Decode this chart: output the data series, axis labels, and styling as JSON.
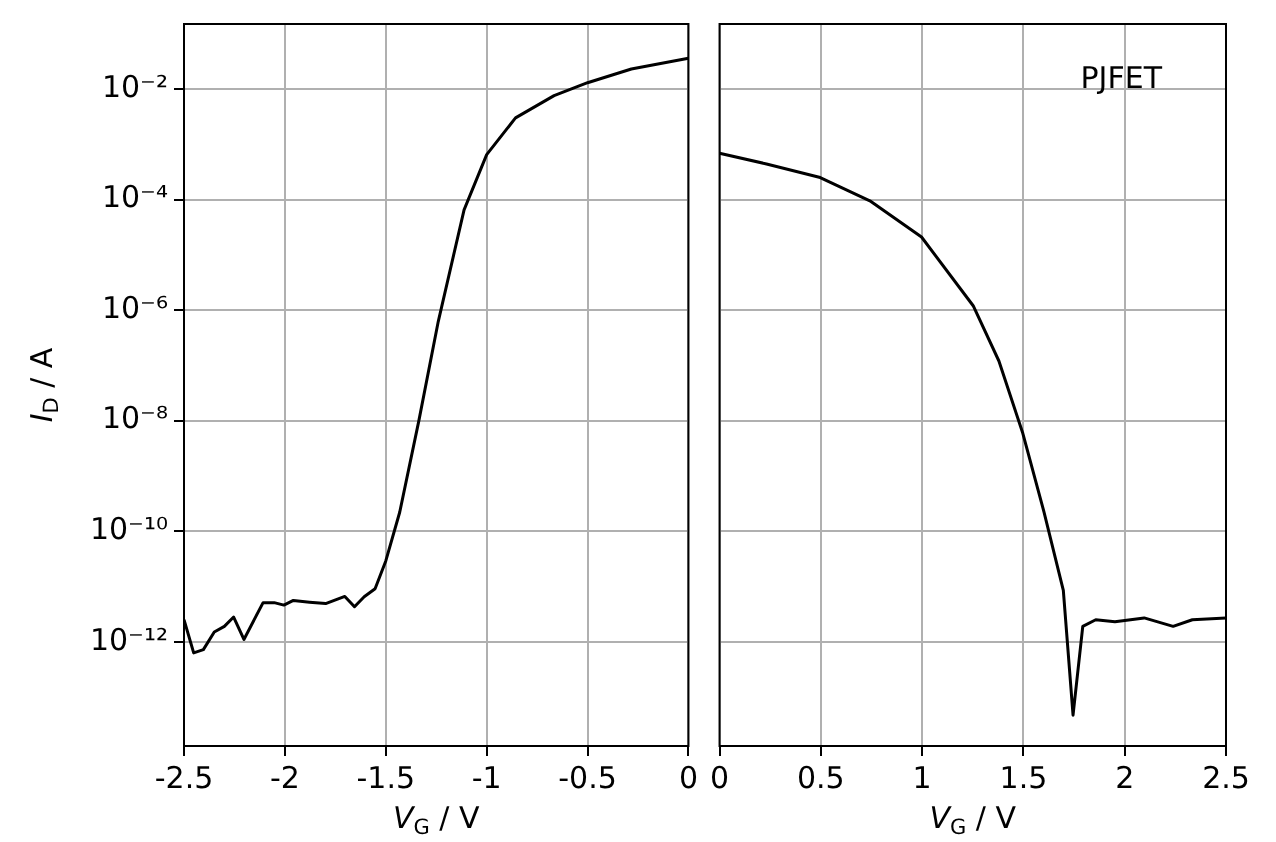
{
  "chart_data": [
    {
      "type": "line",
      "xlabel": "V$_{G}$ / V",
      "ylabel": "I$_{D}$ / A",
      "log": "y",
      "grid": true,
      "marker": "none",
      "line_style": "solid",
      "xlim": [
        -2.5,
        0
      ],
      "xticks": [
        -2.5,
        -2,
        -1.5,
        -1,
        -0.5,
        0
      ],
      "ylim": [
        1.3e-14,
        0.15
      ],
      "yticks": [
        {
          "value": 1e-12,
          "label": "10⁻¹²"
        },
        {
          "value": 1e-10,
          "label": "10⁻¹⁰"
        },
        {
          "value": 1e-08,
          "label": "10⁻⁸"
        },
        {
          "value": 1e-06,
          "label": "10⁻⁶"
        },
        {
          "value": 0.0001,
          "label": "10⁻⁴"
        },
        {
          "value": 0.01,
          "label": "10⁻²"
        }
      ],
      "series": [
        {
          "color": "#000000",
          "x": [
            -2.5,
            -2.452,
            -2.404,
            -2.35,
            -2.3,
            -2.254,
            -2.203,
            -2.108,
            -2.053,
            -2.005,
            -1.958,
            -1.878,
            -1.798,
            -1.703,
            -1.655,
            -1.607,
            -1.553,
            -1.5,
            -1.431,
            -1.336,
            -1.24,
            -1.112,
            -1.0,
            -0.857,
            -0.666,
            -0.5,
            -0.283,
            0
          ],
          "values": [
            2.5e-12,
            6.3e-13,
            7.2e-13,
            1.5e-12,
            1.9e-12,
            2.8e-12,
            1.1e-12,
            5.1e-12,
            5.1e-12,
            4.6e-12,
            5.6e-12,
            5.2e-12,
            4.9e-12,
            6.6e-12,
            4.3e-12,
            6.5e-12,
            9.1e-12,
            2.9e-11,
            2.2e-10,
            1e-08,
            6.2e-07,
            6.5e-05,
            0.00065,
            0.003,
            0.0076,
            0.013,
            0.023,
            0.036
          ]
        }
      ]
    },
    {
      "type": "line",
      "xlabel": "V$_{G}$ / V",
      "annotations": [
        "PJFET"
      ],
      "log": "y",
      "grid": true,
      "marker": "none",
      "line_style": "solid",
      "tick_labels": "x",
      "xlim": [
        0,
        2.5
      ],
      "xticks": [
        0,
        0.5,
        1,
        1.5,
        2,
        2.5
      ],
      "ylim": [
        1.3e-14,
        0.15
      ],
      "yticks": [
        {
          "value": 1e-12,
          "label": null
        },
        {
          "value": 1e-10,
          "label": null
        },
        {
          "value": 1e-08,
          "label": null
        },
        {
          "value": 1e-06,
          "label": null
        },
        {
          "value": 0.0001,
          "label": null
        },
        {
          "value": 0.01,
          "label": null
        }
      ],
      "series": [
        {
          "color": "#000000",
          "x": [
            0,
            0.232,
            0.497,
            0.742,
            0.997,
            1.252,
            1.379,
            1.497,
            1.602,
            1.697,
            1.745,
            1.793,
            1.857,
            1.952,
            2.096,
            2.239,
            2.334,
            2.5
          ],
          "values": [
            0.00069,
            0.00044,
            0.00025,
            9.5e-05,
            2.1e-05,
            1.2e-06,
            1.2e-07,
            5.9e-09,
            2.2e-10,
            8.5e-12,
            4.7e-14,
            1.9e-12,
            2.5e-12,
            2.3e-12,
            2.7e-12,
            1.9e-12,
            2.5e-12,
            2.7e-12
          ]
        }
      ]
    }
  ]
}
